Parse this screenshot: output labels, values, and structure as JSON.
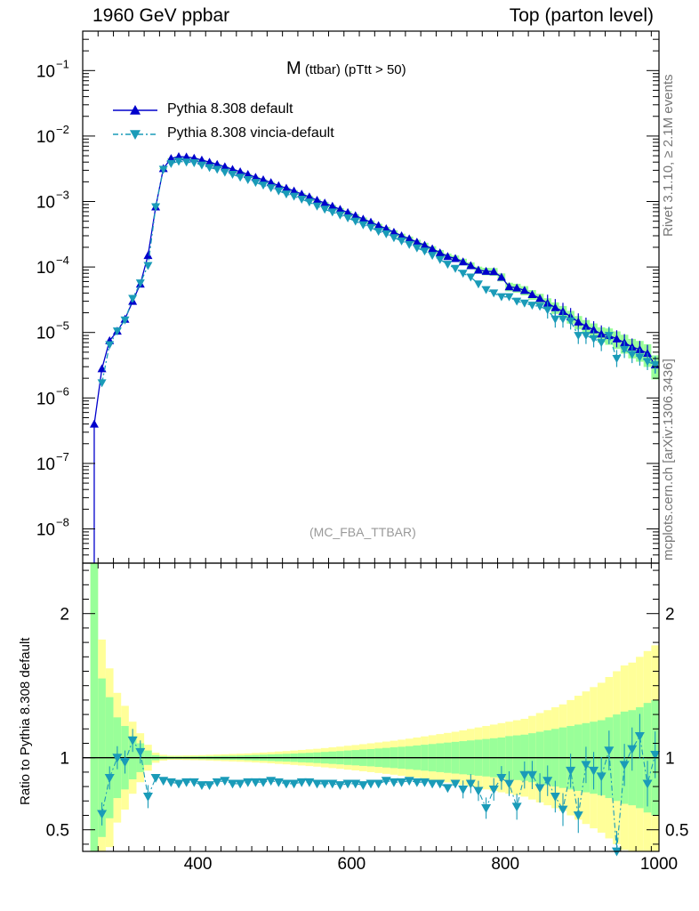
{
  "header": {
    "left": "1960 GeV ppbar",
    "right": "Top (parton level)"
  },
  "plot": {
    "title_main": "M",
    "title_sub": " (ttbar) (pTtt > 50)",
    "tag": "(MC_FBA_TTBAR)"
  },
  "side_labels": {
    "rivet": "Rivet 3.1.10, ≥ 2.1M events",
    "site": "mcplots.cern.ch [arXiv:1306.3436]"
  },
  "colors": {
    "default": "#0000cc",
    "vincia": "#1a9bb8",
    "band_inner": "#99ff99",
    "band_outer": "#ffff99"
  },
  "chart_data": [
    {
      "type": "line",
      "title": "M (ttbar) (pTtt > 50)",
      "xlabel": "",
      "ylabel": "",
      "yscale": "log",
      "xlim": [
        250,
        1000
      ],
      "ylim": [
        3e-09,
        0.4
      ],
      "x_ticks": [
        "400",
        "600",
        "800",
        "1000"
      ],
      "y_ticks": [
        "10^-8",
        "10^-7",
        "10^-6",
        "10^-5",
        "10^-4",
        "10^-3",
        "10^-2",
        "10^-1"
      ],
      "legend": "top-left",
      "x": [
        265,
        275,
        285,
        295,
        305,
        315,
        325,
        335,
        345,
        355,
        365,
        375,
        385,
        395,
        405,
        415,
        425,
        435,
        445,
        455,
        465,
        475,
        485,
        495,
        505,
        515,
        525,
        535,
        545,
        555,
        565,
        575,
        585,
        595,
        605,
        615,
        625,
        635,
        645,
        655,
        665,
        675,
        685,
        695,
        705,
        715,
        725,
        735,
        745,
        755,
        765,
        775,
        785,
        795,
        805,
        815,
        825,
        835,
        845,
        855,
        865,
        875,
        885,
        895,
        905,
        915,
        925,
        935,
        945,
        955,
        965,
        975,
        985,
        995
      ],
      "series": [
        {
          "name": "Pythia 8.308 default",
          "values": [
            4e-07,
            2.8e-06,
            7.5e-06,
            1.05e-05,
            1.6e-05,
            3e-05,
            5.5e-05,
            0.00015,
            0.00083,
            0.0032,
            0.00455,
            0.00485,
            0.0048,
            0.0046,
            0.0043,
            0.004,
            0.0037,
            0.0034,
            0.0031,
            0.00285,
            0.0026,
            0.00235,
            0.00215,
            0.00195,
            0.00175,
            0.0016,
            0.00145,
            0.0013,
            0.00118,
            0.00105,
            0.00095,
            0.00085,
            0.00076,
            0.00068,
            0.00061,
            0.00054,
            0.000485,
            0.00043,
            0.000385,
            0.00034,
            0.0003,
            0.00027,
            0.00024,
            0.000215,
            0.00019,
            0.000165,
            0.000145,
            0.000135,
            0.00012,
            0.000105,
            9e-05,
            8.6e-05,
            8.5e-05,
            7e-05,
            5e-05,
            4.8e-05,
            4.4e-05,
            3.8e-05,
            3.3e-05,
            2.8e-05,
            2.4e-05,
            2.1e-05,
            1.75e-05,
            1.45e-05,
            1.25e-05,
            1.1e-05,
            9.5e-06,
            9e-06,
            8e-06,
            7e-06,
            6e-06,
            5.5e-06,
            4.8e-06,
            3.2e-06
          ]
        },
        {
          "name": "Pythia 8.308 vincia-default",
          "values": [
            null,
            1.7e-06,
            6.5e-06,
            1.05e-05,
            1.55e-05,
            3.3e-05,
            5.7e-05,
            0.000105,
            0.00083,
            0.0031,
            0.0038,
            0.0041,
            0.004,
            0.0039,
            0.0036,
            0.0033,
            0.0031,
            0.0028,
            0.0026,
            0.00235,
            0.00215,
            0.00195,
            0.00178,
            0.00162,
            0.00145,
            0.0013,
            0.0012,
            0.00108,
            0.00098,
            0.00085,
            0.00076,
            0.00069,
            0.00062,
            0.00056,
            0.0005,
            0.00044,
            0.0004,
            0.00035,
            0.00032,
            0.00028,
            0.00025,
            0.00022,
            0.000195,
            0.000175,
            0.00015,
            0.00013,
            0.00011,
            9.5e-05,
            8e-05,
            7e-05,
            5.5e-05,
            4.5e-05,
            4e-05,
            3.5e-05,
            3.5e-05,
            3e-05,
            2.8e-05,
            2.6e-05,
            2.5e-05,
            2.2e-05,
            1.6e-05,
            1.6e-05,
            1.5e-05,
            9e-06,
            9e-06,
            8e-06,
            7e-06,
            9e-06,
            4e-06,
            5.5e-06,
            4.6e-06,
            4.2e-06,
            3.6e-06,
            3.2e-06
          ]
        }
      ]
    },
    {
      "type": "line",
      "title": "",
      "xlabel": "",
      "ylabel": "Ratio to Pythia 8.308 default",
      "xlim": [
        250,
        1000
      ],
      "ylim": [
        0.35,
        2.35
      ],
      "x_ticks": [
        "400",
        "600",
        "800",
        "1000"
      ],
      "y_ticks": [
        "0.5",
        "1",
        "2"
      ],
      "x": [
        265,
        275,
        285,
        295,
        305,
        315,
        325,
        335,
        345,
        355,
        365,
        375,
        385,
        395,
        405,
        415,
        425,
        435,
        445,
        455,
        465,
        475,
        485,
        495,
        505,
        515,
        525,
        535,
        545,
        555,
        565,
        575,
        585,
        595,
        605,
        615,
        625,
        635,
        645,
        655,
        665,
        675,
        685,
        695,
        705,
        715,
        725,
        735,
        745,
        755,
        765,
        775,
        785,
        795,
        805,
        815,
        825,
        835,
        845,
        855,
        865,
        875,
        885,
        895,
        905,
        915,
        925,
        935,
        945,
        955,
        965,
        975,
        985,
        995
      ],
      "series": [
        {
          "name": "Pythia 8.308 vincia-default",
          "values": [
            null,
            0.61,
            0.86,
            1.0,
            0.97,
            1.12,
            1.04,
            0.73,
            0.86,
            0.84,
            0.83,
            0.82,
            0.83,
            0.83,
            0.81,
            0.81,
            0.83,
            0.84,
            0.82,
            0.82,
            0.83,
            0.83,
            0.83,
            0.84,
            0.83,
            0.82,
            0.82,
            0.83,
            0.83,
            0.82,
            0.82,
            0.82,
            0.81,
            0.82,
            0.82,
            0.81,
            0.82,
            0.82,
            0.84,
            0.83,
            0.83,
            0.84,
            0.83,
            0.83,
            0.82,
            0.82,
            0.79,
            0.82,
            0.78,
            0.82,
            0.77,
            0.65,
            0.78,
            0.86,
            0.82,
            0.66,
            0.88,
            0.88,
            0.79,
            0.84,
            0.73,
            0.64,
            0.91,
            0.6,
            0.95,
            0.91,
            0.87,
            1.05,
            0.35,
            0.95,
            1.06,
            1.15,
            0.82,
            1.02
          ]
        },
        {
          "name": "Pythia 8.308 default",
          "values": [
            1,
            1,
            1,
            1,
            1,
            1,
            1,
            1,
            1,
            1,
            1,
            1,
            1,
            1,
            1,
            1,
            1,
            1,
            1,
            1,
            1,
            1,
            1,
            1,
            1,
            1,
            1,
            1,
            1,
            1,
            1,
            1,
            1,
            1,
            1,
            1,
            1,
            1,
            1,
            1,
            1,
            1,
            1,
            1,
            1,
            1,
            1,
            1,
            1,
            1,
            1,
            1,
            1,
            1,
            1,
            1,
            1,
            1,
            1,
            1,
            1,
            1,
            1,
            1,
            1,
            1,
            1,
            1,
            1,
            1,
            1,
            1,
            1,
            1
          ]
        }
      ],
      "band_inner_halfwidth": [
        1.6,
        0.55,
        0.42,
        0.28,
        0.22,
        0.15,
        0.1,
        0.05,
        0.018,
        0.01,
        0.008,
        0.008,
        0.008,
        0.009,
        0.01,
        0.011,
        0.012,
        0.013,
        0.014,
        0.015,
        0.017,
        0.019,
        0.021,
        0.023,
        0.025,
        0.027,
        0.029,
        0.032,
        0.034,
        0.037,
        0.04,
        0.043,
        0.046,
        0.05,
        0.053,
        0.057,
        0.06,
        0.064,
        0.068,
        0.072,
        0.076,
        0.08,
        0.085,
        0.09,
        0.095,
        0.1,
        0.105,
        0.11,
        0.115,
        0.12,
        0.125,
        0.13,
        0.135,
        0.14,
        0.15,
        0.155,
        0.16,
        0.17,
        0.18,
        0.19,
        0.2,
        0.21,
        0.22,
        0.23,
        0.24,
        0.25,
        0.26,
        0.28,
        0.3,
        0.32,
        0.33,
        0.35,
        0.38,
        0.4
      ],
      "band_outer_halfwidth": [
        1.9,
        0.82,
        0.62,
        0.45,
        0.36,
        0.25,
        0.17,
        0.09,
        0.035,
        0.02,
        0.015,
        0.015,
        0.016,
        0.017,
        0.018,
        0.02,
        0.022,
        0.024,
        0.026,
        0.028,
        0.03,
        0.033,
        0.036,
        0.039,
        0.043,
        0.046,
        0.05,
        0.054,
        0.058,
        0.062,
        0.067,
        0.072,
        0.077,
        0.083,
        0.088,
        0.094,
        0.1,
        0.106,
        0.112,
        0.118,
        0.125,
        0.132,
        0.14,
        0.148,
        0.156,
        0.164,
        0.172,
        0.18,
        0.19,
        0.2,
        0.21,
        0.22,
        0.23,
        0.24,
        0.25,
        0.26,
        0.27,
        0.29,
        0.31,
        0.33,
        0.35,
        0.37,
        0.4,
        0.43,
        0.46,
        0.49,
        0.52,
        0.56,
        0.6,
        0.64,
        0.66,
        0.7,
        0.74,
        0.78
      ]
    }
  ]
}
